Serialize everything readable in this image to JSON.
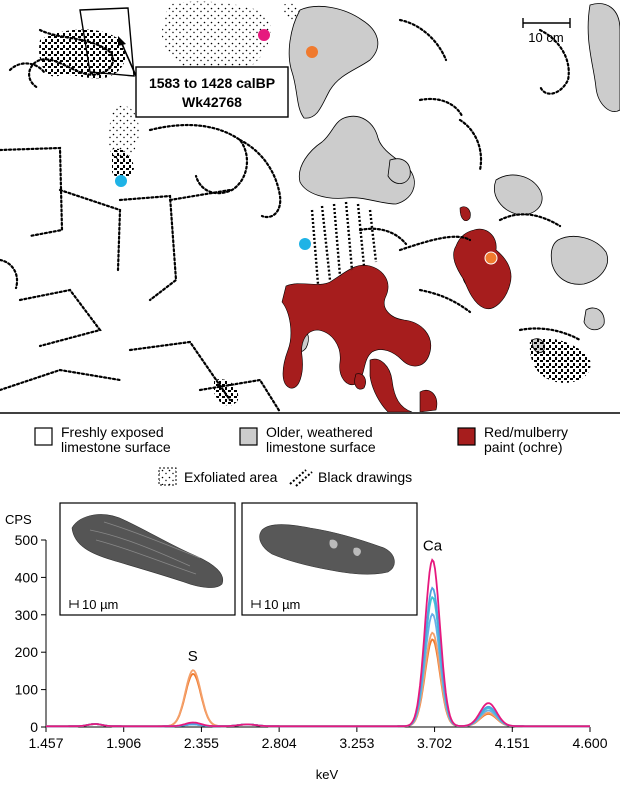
{
  "map": {
    "scale_label": "10 cm",
    "callout_line1": "1583 to 1428 calBP",
    "callout_line2": "Wk42768"
  },
  "legend": {
    "fresh_line1": "Freshly exposed",
    "fresh_line2": "limestone surface",
    "older_line1": "Older, weathered",
    "older_line2": "limestone surface",
    "red_line1": "Red/mulberry",
    "red_line2": "paint (ochre)",
    "exfoliated": "Exfoliated area",
    "black": "Black drawings"
  },
  "colors": {
    "grey_surface": "#cccccc",
    "ochre": "#a61d1d",
    "dot_magenta": "#e6197e",
    "dot_orange": "#f07a2e",
    "dot_cyan": "#1fb3e6"
  },
  "insets": {
    "left_scale": "10 µm",
    "right_scale": "10 µm"
  },
  "chart_data": {
    "type": "line",
    "ylabel": "CPS",
    "xlabel": "keV",
    "x_ticks": [
      "1.457",
      "1.906",
      "2.355",
      "2.804",
      "3.253",
      "3.702",
      "4.151",
      "4.600"
    ],
    "y_ticks": [
      "0",
      "100",
      "200",
      "300",
      "400",
      "500"
    ],
    "xlim": [
      1.457,
      4.6
    ],
    "ylim": [
      0,
      500
    ],
    "annotations": [
      {
        "text": "S",
        "x": 2.305,
        "y": 150
      },
      {
        "text": "Ca",
        "x": 3.69,
        "y": 445
      }
    ],
    "series": [
      {
        "color": "#e6197e",
        "s_peak": 10,
        "ca_peak": 445,
        "cakb_peak": 62
      },
      {
        "color": "#4fa3e0",
        "s_peak": 5,
        "ca_peak": 370,
        "cakb_peak": 52
      },
      {
        "color": "#3fc6d6",
        "s_peak": 5,
        "ca_peak": 345,
        "cakb_peak": 48
      },
      {
        "color": "#6aaee8",
        "s_peak": 5,
        "ca_peak": 300,
        "cakb_peak": 42
      },
      {
        "color": "#f4a06a",
        "s_peak": 150,
        "ca_peak": 250,
        "cakb_peak": 36
      },
      {
        "color": "#f07a2e",
        "s_peak": 140,
        "ca_peak": 232,
        "cakb_peak": 33
      }
    ]
  }
}
